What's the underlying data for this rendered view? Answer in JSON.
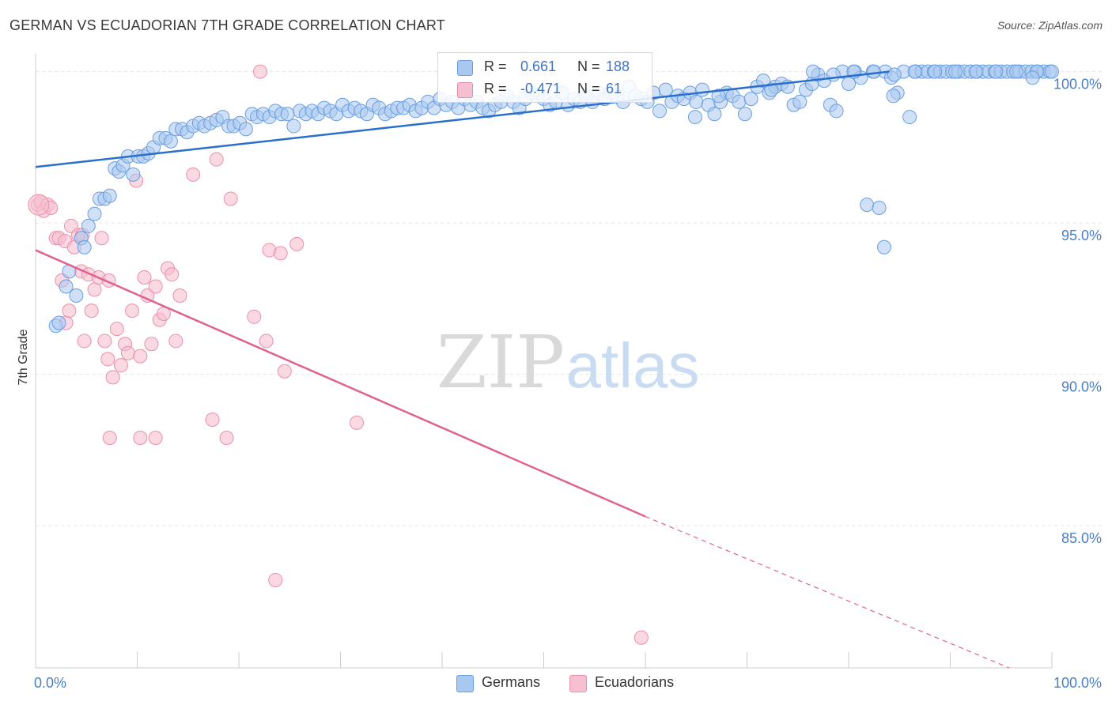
{
  "title": "GERMAN VS ECUADORIAN 7TH GRADE CORRELATION CHART",
  "source": "Source: ZipAtlas.com",
  "watermark": {
    "zip": "ZIP",
    "atlas": "atlas"
  },
  "colors": {
    "blue_fill": "#a9c8f0",
    "blue_stroke": "#6a9ee0",
    "blue_line": "#2a6fcb",
    "pink_fill": "#f7c0d0",
    "pink_stroke": "#ea8fab",
    "pink_line": "#e0638f",
    "grid": "#e6e6e6",
    "tick_label": "#4a7fc8"
  },
  "legend_top": [
    {
      "r_label": "R =",
      "r_value": "0.661",
      "n_label": "N =",
      "n_value": "188",
      "color": "#a9c8f0"
    },
    {
      "r_label": "R =",
      "r_value": "-0.471",
      "n_label": "N =",
      "n_value": "61",
      "color": "#f7c0d0"
    }
  ],
  "legend_bottom": [
    {
      "label": "Germans",
      "color": "#a9c8f0"
    },
    {
      "label": "Ecuadorians",
      "color": "#f7c0d0"
    }
  ],
  "chart_data": {
    "type": "scatter",
    "xlabel": "",
    "ylabel": "7th Grade",
    "xlim": [
      0,
      100
    ],
    "ylim": [
      80.3,
      100.8
    ],
    "x_tick_labels": [
      "0.0%",
      "100.0%"
    ],
    "y_ticks": [
      85,
      90,
      95,
      100
    ],
    "y_tick_labels": [
      "85.0%",
      "90.0%",
      "95.0%",
      "100.0%"
    ],
    "grid": true,
    "legend_position": "top-center",
    "series": [
      {
        "name": "Germans",
        "trend": {
          "x0": 0,
          "y0": 96.85,
          "x1": 84,
          "y1": 100.0
        },
        "points": [
          [
            2,
            91.6
          ],
          [
            2.3,
            91.7
          ],
          [
            3,
            92.9
          ],
          [
            3.3,
            93.4
          ],
          [
            4,
            92.6
          ],
          [
            4.5,
            94.5
          ],
          [
            4.8,
            94.2
          ],
          [
            5.2,
            94.9
          ],
          [
            5.8,
            95.3
          ],
          [
            6.3,
            95.8
          ],
          [
            6.8,
            95.8
          ],
          [
            7.3,
            95.9
          ],
          [
            7.8,
            96.8
          ],
          [
            8.2,
            96.7
          ],
          [
            8.6,
            96.9
          ],
          [
            9.1,
            97.2
          ],
          [
            9.6,
            96.6
          ],
          [
            10.1,
            97.2
          ],
          [
            10.6,
            97.2
          ],
          [
            11.1,
            97.3
          ],
          [
            11.6,
            97.5
          ],
          [
            12.2,
            97.8
          ],
          [
            12.8,
            97.8
          ],
          [
            13.3,
            97.7
          ],
          [
            13.8,
            98.1
          ],
          [
            14.4,
            98.1
          ],
          [
            14.9,
            98.0
          ],
          [
            15.5,
            98.2
          ],
          [
            16.1,
            98.3
          ],
          [
            16.6,
            98.2
          ],
          [
            17.2,
            98.3
          ],
          [
            17.8,
            98.4
          ],
          [
            18.4,
            98.5
          ],
          [
            19,
            98.2
          ],
          [
            19.5,
            98.2
          ],
          [
            20.1,
            98.3
          ],
          [
            20.7,
            98.1
          ],
          [
            21.3,
            98.6
          ],
          [
            21.8,
            98.5
          ],
          [
            22.4,
            98.6
          ],
          [
            23,
            98.5
          ],
          [
            23.6,
            98.7
          ],
          [
            24.2,
            98.6
          ],
          [
            24.8,
            98.6
          ],
          [
            25.4,
            98.2
          ],
          [
            26,
            98.7
          ],
          [
            26.6,
            98.6
          ],
          [
            27.2,
            98.7
          ],
          [
            27.8,
            98.6
          ],
          [
            28.4,
            98.8
          ],
          [
            29,
            98.7
          ],
          [
            29.6,
            98.6
          ],
          [
            30.2,
            98.9
          ],
          [
            30.8,
            98.7
          ],
          [
            31.4,
            98.8
          ],
          [
            32,
            98.7
          ],
          [
            32.6,
            98.6
          ],
          [
            33.2,
            98.9
          ],
          [
            33.8,
            98.8
          ],
          [
            34.4,
            98.6
          ],
          [
            35,
            98.7
          ],
          [
            35.6,
            98.8
          ],
          [
            36.2,
            98.8
          ],
          [
            36.8,
            98.9
          ],
          [
            37.4,
            98.7
          ],
          [
            38,
            98.8
          ],
          [
            38.6,
            99.0
          ],
          [
            39.2,
            98.8
          ],
          [
            39.8,
            99.1
          ],
          [
            40.4,
            98.9
          ],
          [
            41,
            99.0
          ],
          [
            41.6,
            98.8
          ],
          [
            42.2,
            99.1
          ],
          [
            42.8,
            98.9
          ],
          [
            43.4,
            99.0
          ],
          [
            44,
            98.8
          ],
          [
            44.6,
            98.7
          ],
          [
            45.2,
            98.9
          ],
          [
            45.8,
            99.0
          ],
          [
            46.4,
            99.2
          ],
          [
            47,
            99.0
          ],
          [
            47.6,
            98.8
          ],
          [
            48.2,
            99.1
          ],
          [
            48.8,
            99.3
          ],
          [
            49.4,
            99.2
          ],
          [
            50,
            99.1
          ],
          [
            50.6,
            98.9
          ],
          [
            51.2,
            99.0
          ],
          [
            51.8,
            99.3
          ],
          [
            52.4,
            98.9
          ],
          [
            53,
            99.1
          ],
          [
            53.6,
            99.0
          ],
          [
            54.2,
            99.2
          ],
          [
            54.8,
            99.0
          ],
          [
            55.4,
            99.3
          ],
          [
            56,
            99.1
          ],
          [
            56.6,
            99.3
          ],
          [
            57.2,
            99.2
          ],
          [
            57.8,
            99.0
          ],
          [
            58.4,
            99.5
          ],
          [
            59,
            99.2
          ],
          [
            59.6,
            99.1
          ],
          [
            60.2,
            99.0
          ],
          [
            60.8,
            99.3
          ],
          [
            61.4,
            98.7
          ],
          [
            62,
            99.4
          ],
          [
            62.6,
            99.0
          ],
          [
            63.2,
            99.2
          ],
          [
            63.8,
            99.1
          ],
          [
            64.4,
            99.3
          ],
          [
            65,
            99.0
          ],
          [
            65.6,
            99.4
          ],
          [
            66.2,
            98.9
          ],
          [
            66.8,
            98.6
          ],
          [
            67.4,
            99.0
          ],
          [
            68,
            99.3
          ],
          [
            68.6,
            99.2
          ],
          [
            69.2,
            99.0
          ],
          [
            69.8,
            98.6
          ],
          [
            70.4,
            99.1
          ],
          [
            71,
            99.5
          ],
          [
            71.6,
            99.7
          ],
          [
            72.2,
            99.3
          ],
          [
            72.8,
            99.5
          ],
          [
            73.4,
            99.6
          ],
          [
            74,
            99.5
          ],
          [
            74.6,
            98.9
          ],
          [
            75.2,
            99.0
          ],
          [
            75.8,
            99.4
          ],
          [
            76.4,
            99.6
          ],
          [
            77,
            99.9
          ],
          [
            77.6,
            99.7
          ],
          [
            78.2,
            98.9
          ],
          [
            78.8,
            98.7
          ],
          [
            79.4,
            100.0
          ],
          [
            80,
            99.6
          ],
          [
            80.6,
            100.0
          ],
          [
            81.2,
            99.8
          ],
          [
            81.8,
            95.6
          ],
          [
            82.4,
            100.0
          ],
          [
            83,
            95.5
          ],
          [
            83.6,
            100.0
          ],
          [
            84.2,
            99.8
          ],
          [
            84.8,
            99.3
          ],
          [
            85.4,
            100.0
          ],
          [
            86,
            98.5
          ],
          [
            86.6,
            100.0
          ],
          [
            87.2,
            100.0
          ],
          [
            87.8,
            100.0
          ],
          [
            88.4,
            100.0
          ],
          [
            89,
            100.0
          ],
          [
            89.6,
            100.0
          ],
          [
            90.2,
            100.0
          ],
          [
            90.8,
            100.0
          ],
          [
            91.4,
            100.0
          ],
          [
            92,
            100.0
          ],
          [
            92.6,
            100.0
          ],
          [
            93.2,
            100.0
          ],
          [
            93.8,
            100.0
          ],
          [
            94.4,
            100.0
          ],
          [
            95,
            100.0
          ],
          [
            95.6,
            100.0
          ],
          [
            96.2,
            100.0
          ],
          [
            96.8,
            100.0
          ],
          [
            97.4,
            100.0
          ],
          [
            98,
            100.0
          ],
          [
            98.6,
            100.0
          ],
          [
            99.2,
            100.0
          ],
          [
            99.8,
            100.0
          ],
          [
            100.4,
            100.0
          ],
          [
            76.5,
            100.0
          ],
          [
            78.5,
            99.9
          ],
          [
            80.5,
            100.0
          ],
          [
            82.5,
            100.0
          ],
          [
            84.5,
            99.9
          ],
          [
            86.5,
            100.0
          ],
          [
            88.5,
            100.0
          ],
          [
            90.5,
            100.0
          ],
          [
            92.5,
            100.0
          ],
          [
            94.5,
            100.0
          ],
          [
            96.5,
            100.0
          ],
          [
            98.5,
            100.0
          ],
          [
            83.5,
            94.2
          ],
          [
            84.4,
            99.2
          ],
          [
            98.1,
            99.8
          ],
          [
            64.9,
            98.5
          ],
          [
            67.2,
            99.2
          ],
          [
            72.4,
            99.4
          ]
        ]
      },
      {
        "name": "Ecuadorians",
        "trend": {
          "x0": 0,
          "y0": 94.1,
          "x1": 60,
          "y1": 85.3,
          "dash_x1": 100,
          "dash_y1": 80.3
        },
        "points": [
          [
            0.2,
            95.6
          ],
          [
            0.5,
            95.7
          ],
          [
            0.8,
            95.4
          ],
          [
            1.2,
            95.6
          ],
          [
            1.5,
            95.5
          ],
          [
            2.0,
            94.5
          ],
          [
            2.3,
            94.5
          ],
          [
            2.6,
            93.1
          ],
          [
            2.9,
            94.4
          ],
          [
            3.0,
            91.7
          ],
          [
            3.3,
            92.1
          ],
          [
            3.5,
            94.9
          ],
          [
            3.8,
            94.2
          ],
          [
            4.2,
            94.6
          ],
          [
            4.5,
            93.4
          ],
          [
            4.8,
            91.1
          ],
          [
            5.2,
            93.3
          ],
          [
            5.5,
            92.1
          ],
          [
            5.8,
            92.8
          ],
          [
            6.2,
            93.2
          ],
          [
            6.5,
            94.5
          ],
          [
            6.8,
            91.1
          ],
          [
            7.2,
            93.1
          ],
          [
            7.6,
            89.9
          ],
          [
            8.0,
            91.5
          ],
          [
            8.4,
            90.3
          ],
          [
            8.8,
            91.0
          ],
          [
            9.1,
            90.7
          ],
          [
            9.5,
            92.1
          ],
          [
            9.9,
            96.4
          ],
          [
            10.3,
            90.6
          ],
          [
            10.7,
            93.2
          ],
          [
            11.0,
            92.6
          ],
          [
            11.4,
            91.0
          ],
          [
            11.8,
            92.9
          ],
          [
            12.2,
            91.8
          ],
          [
            12.6,
            92.0
          ],
          [
            13.0,
            93.5
          ],
          [
            13.4,
            93.3
          ],
          [
            13.8,
            91.1
          ],
          [
            14.2,
            92.6
          ],
          [
            15.5,
            96.6
          ],
          [
            17.4,
            88.5
          ],
          [
            17.8,
            97.1
          ],
          [
            18.8,
            87.9
          ],
          [
            19.2,
            95.8
          ],
          [
            21.5,
            91.9
          ],
          [
            22.1,
            100.0
          ],
          [
            22.7,
            91.1
          ],
          [
            23.0,
            94.1
          ],
          [
            23.6,
            83.2
          ],
          [
            24.1,
            94.0
          ],
          [
            24.5,
            90.1
          ],
          [
            25.7,
            94.3
          ],
          [
            31.6,
            88.4
          ],
          [
            59.6,
            81.3
          ],
          [
            7.3,
            87.9
          ],
          [
            10.3,
            87.9
          ],
          [
            11.8,
            87.9
          ],
          [
            7.1,
            90.5
          ],
          [
            4.6,
            94.6
          ]
        ]
      }
    ]
  }
}
